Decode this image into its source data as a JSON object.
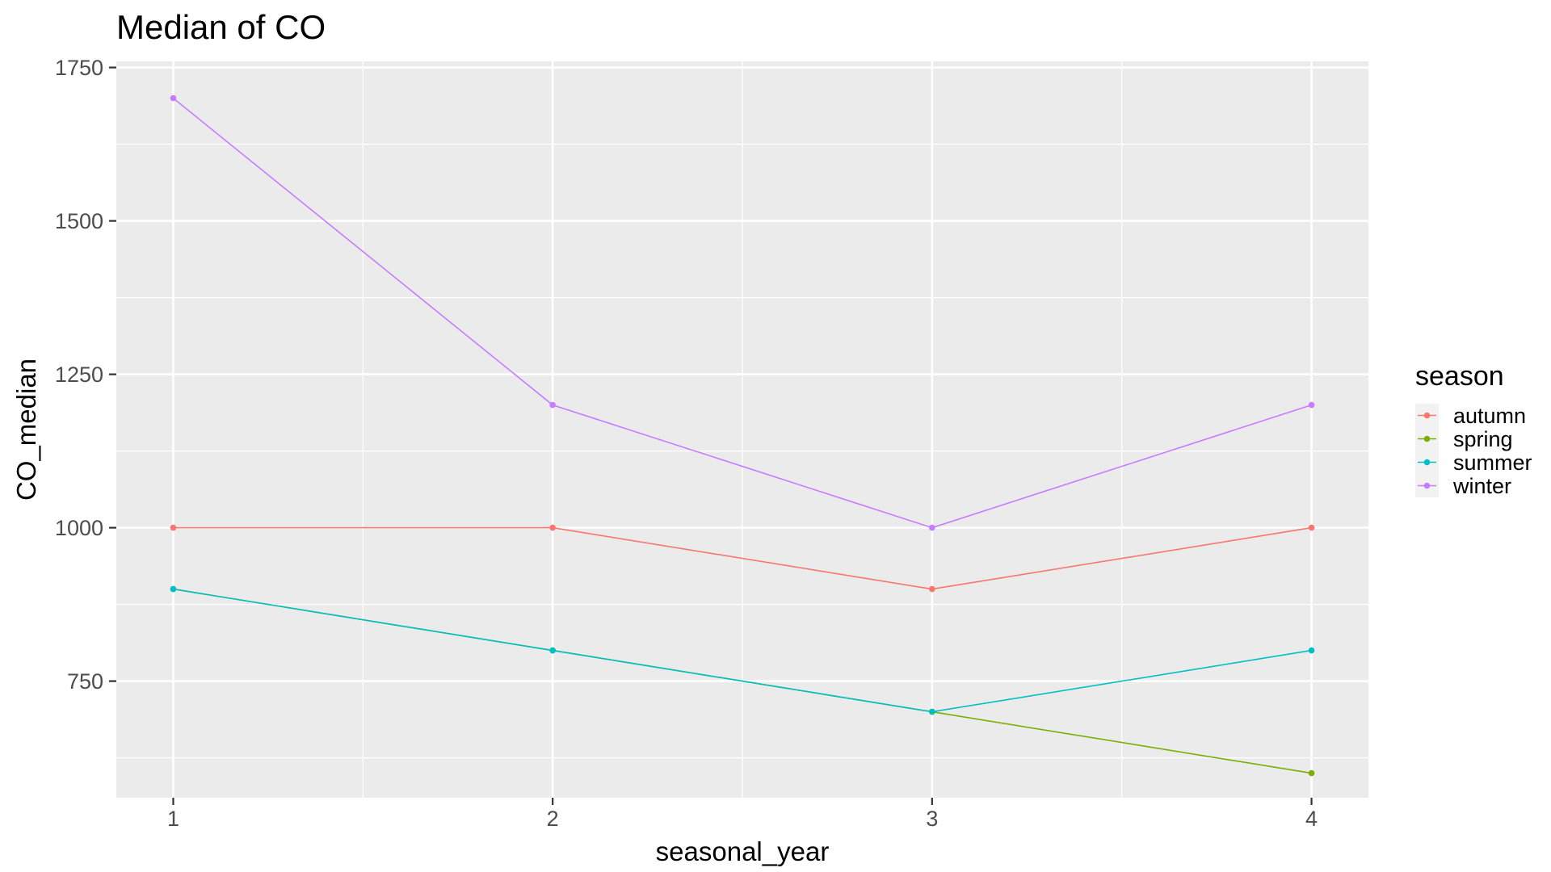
{
  "chart_data": {
    "type": "line",
    "title": "Median of CO",
    "xlabel": "seasonal_year",
    "ylabel": "CO_median",
    "x": [
      1,
      2,
      3,
      4
    ],
    "x_ticks": [
      "1",
      "2",
      "3",
      "4"
    ],
    "y_ticks": [
      "750",
      "1000",
      "1250",
      "1500",
      "1750"
    ],
    "xlim": [
      0.85,
      4.15
    ],
    "ylim": [
      560,
      1760
    ],
    "grid": true,
    "legend": {
      "title": "season",
      "position": "right"
    },
    "series": [
      {
        "name": "autumn",
        "color": "#F8766D",
        "values": [
          1000,
          1000,
          900,
          1000
        ]
      },
      {
        "name": "spring",
        "color": "#7CAE00",
        "values": [
          900,
          800,
          700,
          600
        ]
      },
      {
        "name": "summer",
        "color": "#00BFC4",
        "values": [
          900,
          800,
          700,
          800
        ]
      },
      {
        "name": "winter",
        "color": "#C77CFF",
        "values": [
          1700,
          1200,
          1000,
          1200
        ]
      }
    ]
  }
}
